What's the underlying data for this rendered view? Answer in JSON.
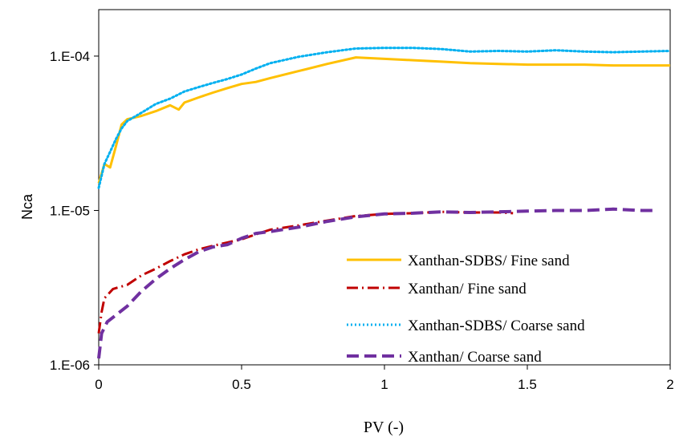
{
  "chart_data": {
    "type": "line",
    "title": "",
    "xlabel": "PV (-)",
    "ylabel": "Nca",
    "xlim": [
      0,
      2
    ],
    "ylim": [
      1e-06,
      0.0002
    ],
    "yscale": "log",
    "grid": false,
    "legend_position": "bottom-right",
    "x_ticks": [
      "0",
      "0.5",
      "1",
      "1.5",
      "2"
    ],
    "y_ticks": [
      "1.E-06",
      "1.E-05",
      "1.E-04"
    ],
    "series": [
      {
        "name": "Xanthan-SDBS/ Fine sand",
        "color": "#FFC000",
        "style": "solid",
        "x": [
          0,
          0.02,
          0.04,
          0.06,
          0.08,
          0.1,
          0.15,
          0.2,
          0.25,
          0.28,
          0.3,
          0.35,
          0.4,
          0.45,
          0.5,
          0.55,
          0.6,
          0.7,
          0.8,
          0.9,
          1.0,
          1.1,
          1.2,
          1.3,
          1.4,
          1.5,
          1.6,
          1.7,
          1.8,
          1.9,
          2.0
        ],
        "y": [
          1.5e-05,
          2e-05,
          1.9e-05,
          2.6e-05,
          3.6e-05,
          3.9e-05,
          4.1e-05,
          4.4e-05,
          4.8e-05,
          4.5e-05,
          5e-05,
          5.4e-05,
          5.8e-05,
          6.2e-05,
          6.6e-05,
          6.8e-05,
          7.2e-05,
          8e-05,
          8.9e-05,
          9.8e-05,
          9.6e-05,
          9.4e-05,
          9.2e-05,
          9e-05,
          8.9e-05,
          8.8e-05,
          8.8e-05,
          8.8e-05,
          8.7e-05,
          8.7e-05,
          8.7e-05
        ]
      },
      {
        "name": "Xanthan/ Fine sand",
        "color": "#C00000",
        "style": "dashdot",
        "x": [
          0,
          0.01,
          0.02,
          0.05,
          0.1,
          0.15,
          0.2,
          0.25,
          0.3,
          0.35,
          0.4,
          0.45,
          0.5,
          0.55,
          0.6,
          0.7,
          0.8,
          0.9,
          1.0,
          1.1,
          1.2,
          1.3,
          1.4,
          1.45
        ],
        "y": [
          1.6e-06,
          2.2e-06,
          2.7e-06,
          3.1e-06,
          3.3e-06,
          3.8e-06,
          4.2e-06,
          4.7e-06,
          5.2e-06,
          5.6e-06,
          5.9e-06,
          6.2e-06,
          6.5e-06,
          7e-06,
          7.5e-06,
          8e-06,
          8.6e-06,
          9.2e-06,
          9.5e-06,
          9.6e-06,
          9.8e-06,
          9.7e-06,
          9.7e-06,
          9.6e-06
        ]
      },
      {
        "name": "Xanthan-SDBS/ Coarse sand",
        "color": "#00B0F0",
        "style": "dotted",
        "x": [
          0,
          0.02,
          0.04,
          0.06,
          0.08,
          0.1,
          0.15,
          0.2,
          0.25,
          0.3,
          0.35,
          0.4,
          0.45,
          0.5,
          0.55,
          0.6,
          0.7,
          0.8,
          0.9,
          1.0,
          1.1,
          1.2,
          1.3,
          1.4,
          1.5,
          1.6,
          1.7,
          1.8,
          1.9,
          2.0
        ],
        "y": [
          1.4e-05,
          2e-05,
          2.4e-05,
          2.9e-05,
          3.4e-05,
          3.8e-05,
          4.3e-05,
          4.9e-05,
          5.3e-05,
          5.9e-05,
          6.3e-05,
          6.7e-05,
          7.1e-05,
          7.6e-05,
          8.3e-05,
          9e-05,
          9.9e-05,
          0.000106,
          0.000112,
          0.000113,
          0.000113,
          0.000111,
          0.000107,
          0.000108,
          0.000107,
          0.000109,
          0.000107,
          0.000106,
          0.000107,
          0.000108
        ]
      },
      {
        "name": "Xanthan/ Coarse sand",
        "color": "#7030A0",
        "style": "dashed",
        "x": [
          0,
          0.01,
          0.03,
          0.06,
          0.1,
          0.15,
          0.2,
          0.25,
          0.3,
          0.35,
          0.4,
          0.45,
          0.5,
          0.55,
          0.6,
          0.7,
          0.8,
          0.9,
          1.0,
          1.1,
          1.2,
          1.3,
          1.4,
          1.5,
          1.6,
          1.7,
          1.8,
          1.9,
          1.95
        ],
        "y": [
          1.1e-06,
          1.6e-06,
          1.9e-06,
          2.1e-06,
          2.4e-06,
          3e-06,
          3.6e-06,
          4.2e-06,
          4.8e-06,
          5.4e-06,
          5.8e-06,
          6e-06,
          6.6e-06,
          7.1e-06,
          7.3e-06,
          7.8e-06,
          8.5e-06,
          9.1e-06,
          9.5e-06,
          9.6e-06,
          9.8e-06,
          9.7e-06,
          9.8e-06,
          9.9e-06,
          1e-05,
          1e-05,
          1.02e-05,
          1e-05,
          1e-05
        ]
      }
    ]
  }
}
